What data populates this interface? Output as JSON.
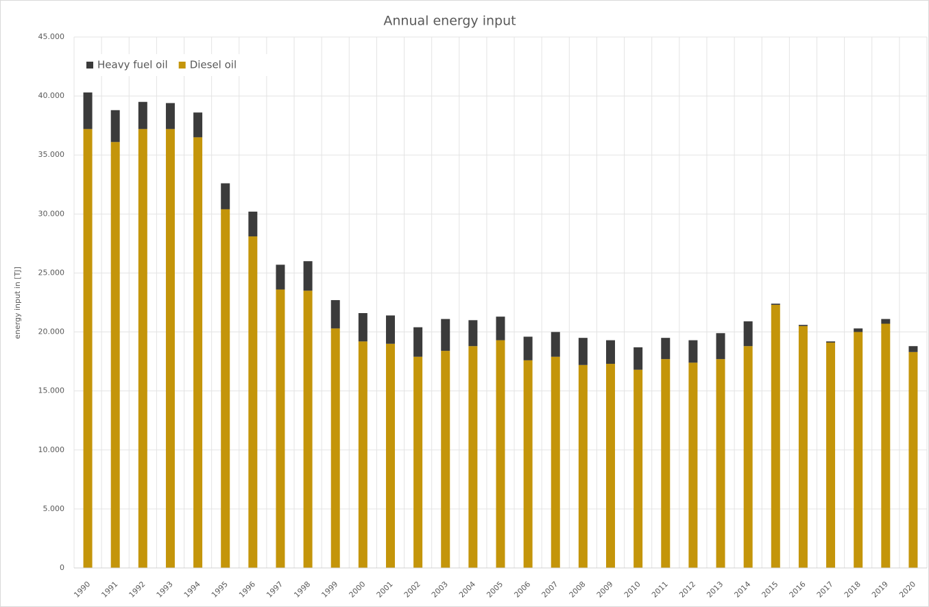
{
  "chart_data": {
    "type": "stacked-bar",
    "title": "Annual energy input",
    "y_label": "energy input in [TJ]",
    "categories": [
      "1990",
      "1991",
      "1992",
      "1993",
      "1994",
      "1995",
      "1996",
      "1997",
      "1998",
      "1999",
      "2000",
      "2001",
      "2002",
      "2003",
      "2004",
      "2005",
      "2006",
      "2007",
      "2008",
      "2009",
      "2010",
      "2011",
      "2012",
      "2013",
      "2014",
      "2015",
      "2016",
      "2017",
      "2018",
      "2019",
      "2020"
    ],
    "series": [
      {
        "name": "Heavy fuel oil",
        "color": "#3b3b3b",
        "values": [
          3100,
          2700,
          2300,
          2200,
          2100,
          2200,
          2100,
          2100,
          2500,
          2400,
          2400,
          2400,
          2500,
          2700,
          2200,
          2000,
          2000,
          2100,
          2300,
          2000,
          1900,
          1800,
          1900,
          2200,
          2100,
          100,
          100,
          100,
          300,
          400,
          500
        ]
      },
      {
        "name": "Diesel oil",
        "color": "#c4950a",
        "values": [
          37200,
          36100,
          37200,
          37200,
          36500,
          30400,
          28100,
          23600,
          23500,
          20300,
          19200,
          19000,
          17900,
          18400,
          18800,
          19300,
          17600,
          17900,
          17200,
          17300,
          16800,
          17700,
          17400,
          17700,
          18800,
          22300,
          20500,
          19100,
          20000,
          20700,
          18300
        ]
      }
    ],
    "ylim": [
      0,
      45000
    ],
    "yticks": [
      0,
      {
        "value": 5000,
        "label": "5.000"
      },
      {
        "value": 10000,
        "label": "10.000"
      },
      {
        "value": 15000,
        "label": "15.000"
      },
      {
        "value": 20000,
        "label": "20.000"
      },
      {
        "value": 25000,
        "label": "25.000"
      },
      {
        "value": 30000,
        "label": "30.000"
      },
      {
        "value": 35000,
        "label": "35.000"
      },
      {
        "value": 40000,
        "label": "40.000"
      },
      {
        "value": 45000,
        "label": "45.000"
      }
    ],
    "grid": true,
    "legend": "top-left"
  }
}
